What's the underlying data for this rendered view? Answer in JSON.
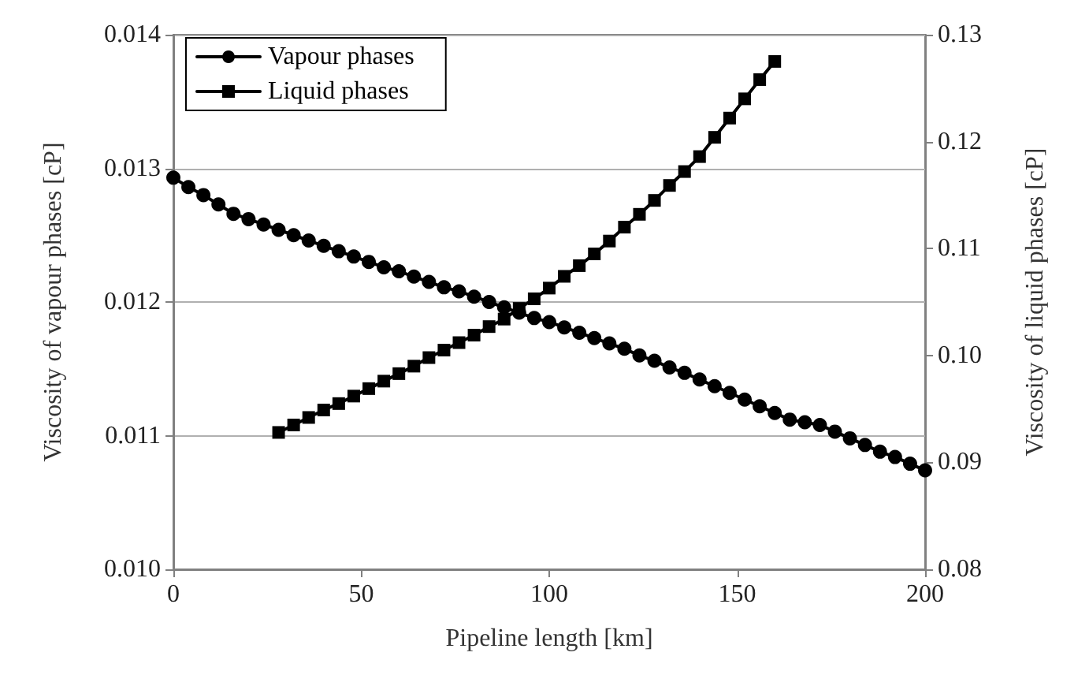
{
  "chart_data": {
    "type": "line",
    "xlabel": "Pipeline length [km]",
    "ylabel": "Viscosity of vapour phases [cP]",
    "y2label": "Viscosity of liquid phases [cP]",
    "xlim": [
      0,
      200
    ],
    "xticks": [
      0,
      50,
      100,
      150,
      200
    ],
    "ylim": [
      0.01,
      0.014
    ],
    "yticks": [
      {
        "value": 0.01,
        "label": "0.010"
      },
      0.011,
      0.012,
      0.013,
      0.014
    ],
    "y2lim": [
      0.08,
      0.13
    ],
    "y2ticks": [
      0.08,
      0.09,
      {
        "value": 0.1,
        "label": "0.10"
      },
      0.11,
      0.12,
      0.13
    ],
    "grid": "y",
    "legend": "top left",
    "line_style": "solid",
    "series": [
      {
        "name": "Vapour phases",
        "color": "#000000",
        "marker": "circle",
        "x": [
          0,
          4,
          8,
          12,
          16,
          20,
          24,
          28,
          32,
          36,
          40,
          44,
          48,
          52,
          56,
          60,
          64,
          68,
          72,
          76,
          80,
          84,
          88,
          92,
          96,
          100,
          104,
          108,
          112,
          116,
          120,
          124,
          128,
          132,
          136,
          140,
          144,
          148,
          152,
          156,
          160,
          164,
          168,
          172,
          176,
          180,
          184,
          188,
          192,
          196,
          200
        ],
        "values": [
          0.01293,
          0.01286,
          0.0128,
          0.01273,
          0.01266,
          0.01262,
          0.01258,
          0.01254,
          0.0125,
          0.01246,
          0.01242,
          0.01238,
          0.01234,
          0.0123,
          0.01226,
          0.01223,
          0.01219,
          0.01215,
          0.01211,
          0.01208,
          0.01204,
          0.012,
          0.01196,
          0.01192,
          0.01188,
          0.01185,
          0.01181,
          0.01177,
          0.01173,
          0.01169,
          0.01165,
          0.0116,
          0.01156,
          0.01151,
          0.01147,
          0.01142,
          0.01137,
          0.01132,
          0.01127,
          0.01122,
          0.01117,
          0.01112,
          0.0111,
          0.01108,
          0.01103,
          0.01098,
          0.01093,
          0.01088,
          0.01084,
          0.01079,
          0.01074
        ]
      },
      {
        "name": "Liquid phases",
        "color": "#000000",
        "marker": "square",
        "axis": "y2",
        "x": [
          28,
          32,
          36,
          40,
          44,
          48,
          52,
          56,
          60,
          64,
          68,
          72,
          76,
          80,
          84,
          88,
          92,
          96,
          100,
          104,
          108,
          112,
          116,
          120,
          124,
          128,
          132,
          136,
          140,
          144,
          148,
          152,
          156,
          160
        ],
        "values": [
          0.0928,
          0.0935,
          0.0942,
          0.0949,
          0.0955,
          0.0962,
          0.0969,
          0.0976,
          0.0983,
          0.099,
          0.0998,
          0.1005,
          0.1012,
          0.1019,
          0.1027,
          0.1034,
          0.1044,
          0.1053,
          0.1063,
          0.1074,
          0.1084,
          0.1095,
          0.1107,
          0.112,
          0.1132,
          0.1145,
          0.1159,
          0.1172,
          0.1186,
          0.1204,
          0.1222,
          0.124,
          0.1258,
          0.1275
        ]
      }
    ]
  }
}
